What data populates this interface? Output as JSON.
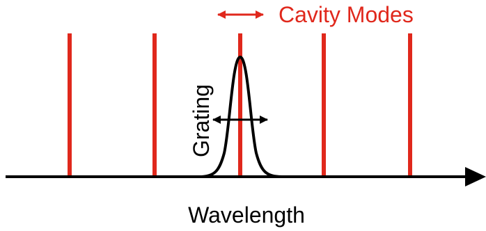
{
  "diagram": {
    "cavity_label": "Cavity Modes",
    "grating_label": "Grating",
    "axis_label": "Wavelength",
    "colors": {
      "mode": "#e0281c",
      "curve": "#000000",
      "axis": "#000000"
    },
    "cavity_mode_count": 5
  }
}
